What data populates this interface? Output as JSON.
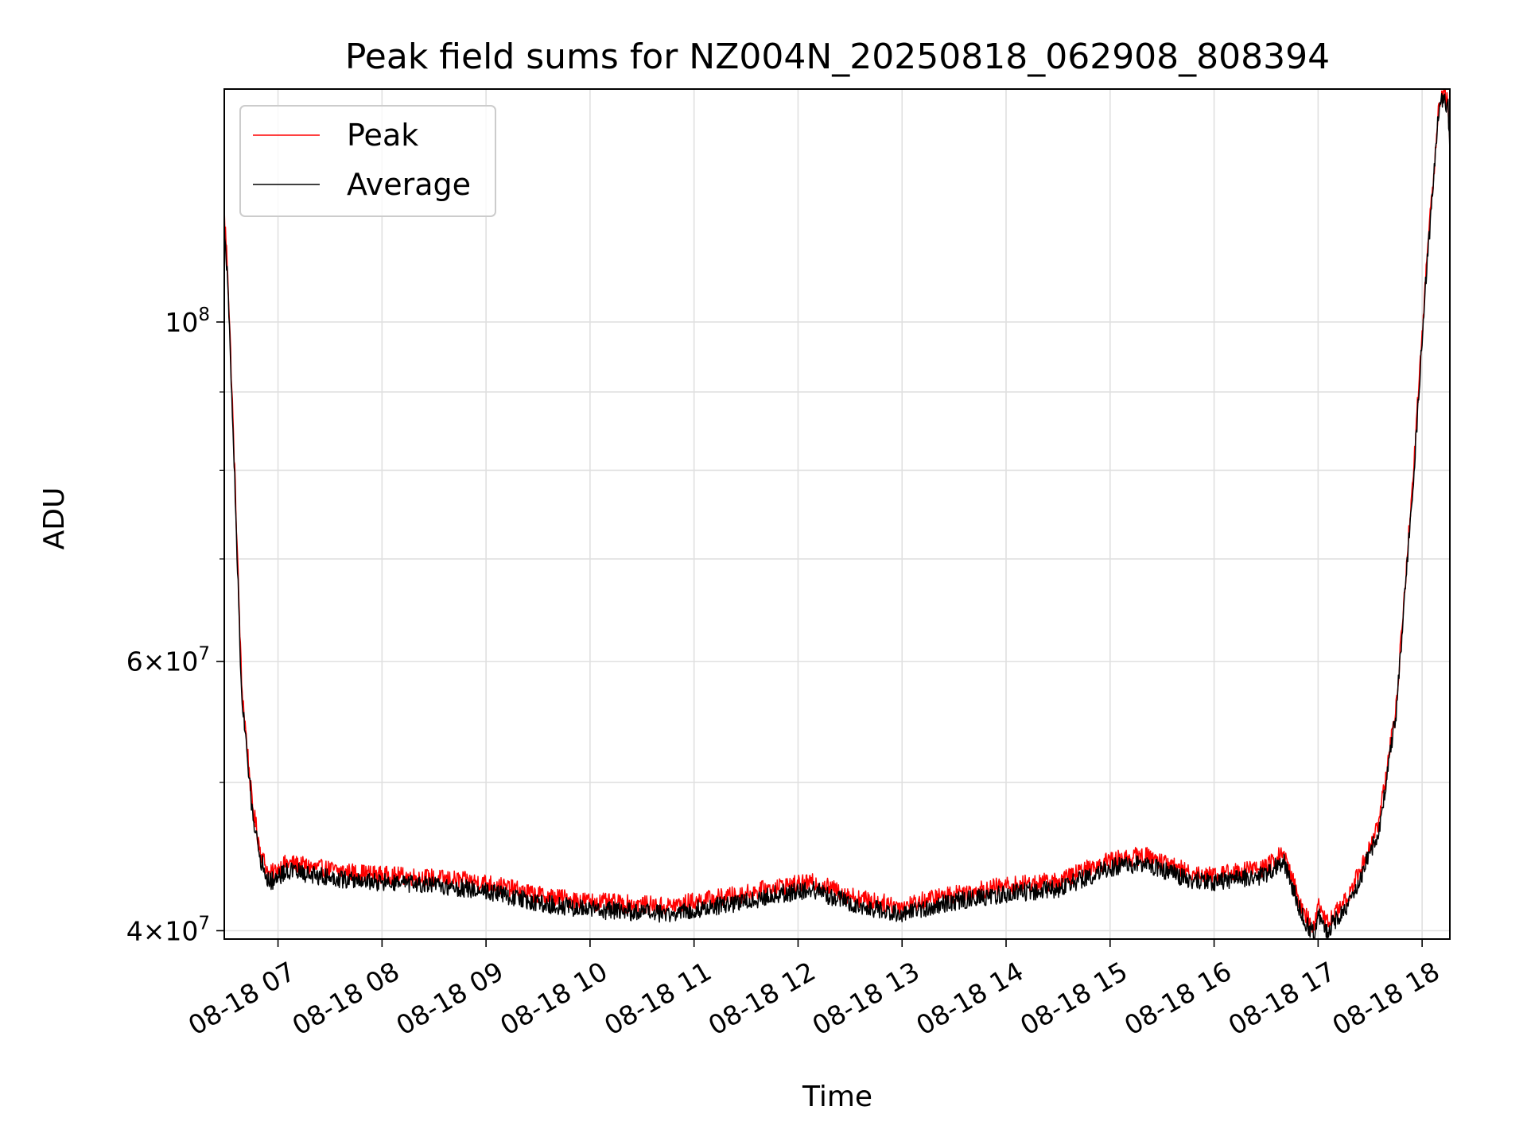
{
  "chart_data": {
    "type": "line",
    "title": "Peak field sums for NZ004N_20250818_062908_808394",
    "xlabel": "Time",
    "ylabel": "ADU",
    "yscale": "log",
    "ylim": [
      39500000,
      142000000
    ],
    "xlim": [
      "2025-08-18 06:29",
      "2025-08-18 18:16"
    ],
    "grid": true,
    "legend_position": "top-left",
    "x_ticks": [
      {
        "value": "2025-08-18 07:00",
        "label": "08-18 07"
      },
      {
        "value": "2025-08-18 08:00",
        "label": "08-18 08"
      },
      {
        "value": "2025-08-18 09:00",
        "label": "08-18 09"
      },
      {
        "value": "2025-08-18 10:00",
        "label": "08-18 10"
      },
      {
        "value": "2025-08-18 11:00",
        "label": "08-18 11"
      },
      {
        "value": "2025-08-18 12:00",
        "label": "08-18 12"
      },
      {
        "value": "2025-08-18 13:00",
        "label": "08-18 13"
      },
      {
        "value": "2025-08-18 14:00",
        "label": "08-18 14"
      },
      {
        "value": "2025-08-18 15:00",
        "label": "08-18 15"
      },
      {
        "value": "2025-08-18 16:00",
        "label": "08-18 16"
      },
      {
        "value": "2025-08-18 17:00",
        "label": "08-18 17"
      },
      {
        "value": "2025-08-18 18:00",
        "label": "08-18 18"
      }
    ],
    "y_ticks": [
      {
        "value": 40000000,
        "base": "4",
        "mantissa": "10",
        "exponent": "7"
      },
      {
        "value": 60000000,
        "base": "6",
        "mantissa": "10",
        "exponent": "7"
      },
      {
        "value": 100000000,
        "base": "",
        "mantissa": "10",
        "exponent": "8"
      }
    ],
    "y_minor_ticks": [
      50000000,
      70000000,
      80000000,
      90000000
    ],
    "series": [
      {
        "name": "Peak",
        "color": "#ff0000",
        "x": [
          "2025-08-18 06:29",
          "2025-08-18 06:31",
          "2025-08-18 06:35",
          "2025-08-18 06:39",
          "2025-08-18 06:45",
          "2025-08-18 06:50",
          "2025-08-18 06:55",
          "2025-08-18 07:05",
          "2025-08-18 07:20",
          "2025-08-18 07:40",
          "2025-08-18 08:00",
          "2025-08-18 08:30",
          "2025-08-18 09:00",
          "2025-08-18 09:30",
          "2025-08-18 09:45",
          "2025-08-18 10:00",
          "2025-08-18 10:30",
          "2025-08-18 10:45",
          "2025-08-18 11:00",
          "2025-08-18 11:30",
          "2025-08-18 11:50",
          "2025-08-18 12:10",
          "2025-08-18 12:35",
          "2025-08-18 13:00",
          "2025-08-18 13:10",
          "2025-08-18 13:30",
          "2025-08-18 14:00",
          "2025-08-18 14:30",
          "2025-08-18 15:00",
          "2025-08-18 15:20",
          "2025-08-18 15:45",
          "2025-08-18 16:00",
          "2025-08-18 16:30",
          "2025-08-18 16:40",
          "2025-08-18 16:52",
          "2025-08-18 16:58",
          "2025-08-18 17:00",
          "2025-08-18 17:05",
          "2025-08-18 17:15",
          "2025-08-18 17:25",
          "2025-08-18 17:35",
          "2025-08-18 17:45",
          "2025-08-18 17:55",
          "2025-08-18 18:02",
          "2025-08-18 18:10",
          "2025-08-18 18:13",
          "2025-08-18 18:15",
          "2025-08-18 18:16"
        ],
        "y": [
          118000000,
          108000000,
          80000000,
          58000000,
          48500000,
          45000000,
          43500000,
          44300000,
          44000000,
          43700000,
          43500000,
          43300000,
          43000000,
          42200000,
          42000000,
          41800000,
          41600000,
          41500000,
          41800000,
          42300000,
          42800000,
          43000000,
          42000000,
          41500000,
          41800000,
          42300000,
          42800000,
          43100000,
          44500000,
          44800000,
          43700000,
          43500000,
          44000000,
          45000000,
          41000000,
          40200000,
          41500000,
          40500000,
          41700000,
          44000000,
          47000000,
          56000000,
          80000000,
          107000000,
          140000000,
          141000000,
          139000000,
          130000000
        ]
      },
      {
        "name": "Average",
        "color": "#000000",
        "x": [
          "2025-08-18 06:29",
          "2025-08-18 06:31",
          "2025-08-18 06:35",
          "2025-08-18 06:39",
          "2025-08-18 06:45",
          "2025-08-18 06:50",
          "2025-08-18 06:55",
          "2025-08-18 07:05",
          "2025-08-18 07:20",
          "2025-08-18 07:40",
          "2025-08-18 08:00",
          "2025-08-18 08:30",
          "2025-08-18 09:00",
          "2025-08-18 09:30",
          "2025-08-18 09:45",
          "2025-08-18 10:00",
          "2025-08-18 10:30",
          "2025-08-18 10:45",
          "2025-08-18 11:00",
          "2025-08-18 11:30",
          "2025-08-18 11:50",
          "2025-08-18 12:10",
          "2025-08-18 12:35",
          "2025-08-18 13:00",
          "2025-08-18 13:10",
          "2025-08-18 13:30",
          "2025-08-18 14:00",
          "2025-08-18 14:30",
          "2025-08-18 15:00",
          "2025-08-18 15:20",
          "2025-08-18 15:45",
          "2025-08-18 16:00",
          "2025-08-18 16:30",
          "2025-08-18 16:40",
          "2025-08-18 16:52",
          "2025-08-18 16:58",
          "2025-08-18 17:00",
          "2025-08-18 17:05",
          "2025-08-18 17:15",
          "2025-08-18 17:25",
          "2025-08-18 17:35",
          "2025-08-18 17:45",
          "2025-08-18 17:55",
          "2025-08-18 18:02",
          "2025-08-18 18:10",
          "2025-08-18 18:13",
          "2025-08-18 18:15",
          "2025-08-18 18:16"
        ],
        "y": [
          116000000,
          106000000,
          79000000,
          57000000,
          48000000,
          44500000,
          43000000,
          43800000,
          43500000,
          43200000,
          43000000,
          42800000,
          42500000,
          41700000,
          41500000,
          41300000,
          41100000,
          41000000,
          41300000,
          41800000,
          42300000,
          42500000,
          41500000,
          41000000,
          41300000,
          41800000,
          42300000,
          42600000,
          44000000,
          44300000,
          43200000,
          43000000,
          43500000,
          44500000,
          40500000,
          39800000,
          41000000,
          40000000,
          41200000,
          43500000,
          46500000,
          55500000,
          79000000,
          106000000,
          139000000,
          140000000,
          138000000,
          129000000
        ]
      }
    ]
  }
}
